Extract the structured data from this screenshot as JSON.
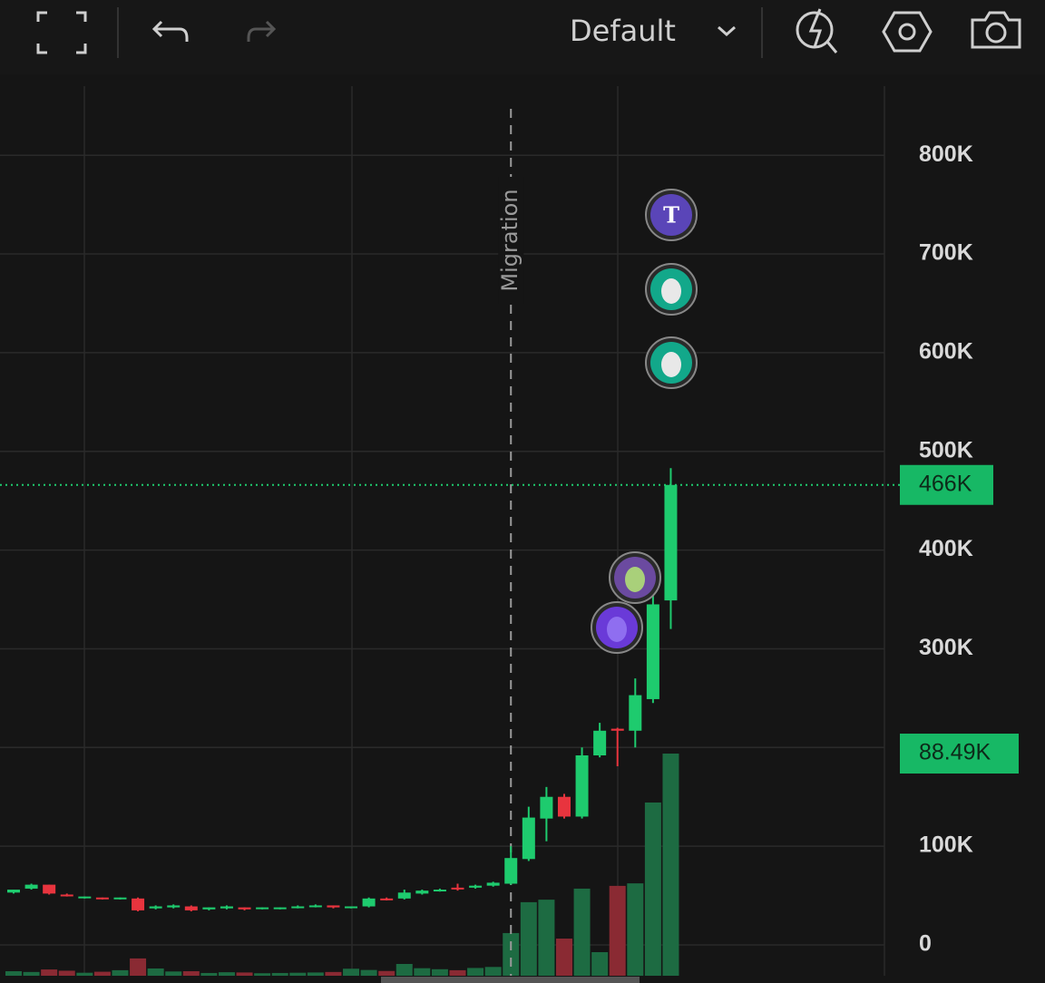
{
  "toolbar": {
    "layout": "Default"
  },
  "chart_data": {
    "type": "candlestick",
    "ylim": [
      -31250,
      870000
    ],
    "yticks": [
      0,
      {
        "value": 100000,
        "label": "100K"
      },
      {
        "value": 200000,
        "label": "200K"
      },
      {
        "value": 300000,
        "label": "300K"
      },
      {
        "value": 400000,
        "label": "400K"
      },
      {
        "value": 500000,
        "label": "500K"
      },
      {
        "value": 600000,
        "label": "600K"
      },
      {
        "value": 700000,
        "label": "700K"
      },
      {
        "value": 800000,
        "label": "800K"
      }
    ],
    "grid": true,
    "up_color": "#1ecb6e",
    "down_color": "#e8343e",
    "up_volume_color": "#1d6b42",
    "down_volume_color": "#8a2a33",
    "current_price": {
      "value": 466000,
      "label": "466K"
    },
    "current_volume": {
      "value": 88490,
      "label": "88.49K"
    },
    "annotation": {
      "text": "Migration",
      "candle": 28
    },
    "marker_text": "T",
    "candles": [
      {
        "open": 53000,
        "high": 56000,
        "low": 52000,
        "close": 56000,
        "volume": 1800
      },
      {
        "open": 57000,
        "high": 62000,
        "low": 56000,
        "close": 61000,
        "volume": 1500
      },
      {
        "open": 61000,
        "high": 61000,
        "low": 51000,
        "close": 52000,
        "volume": 2500
      },
      {
        "open": 51000,
        "high": 52000,
        "low": 49000,
        "close": 50000,
        "volume": 2000
      },
      {
        "open": 48000,
        "high": 49000,
        "low": 47000,
        "close": 49000,
        "volume": 1200
      },
      {
        "open": 48000,
        "high": 48000,
        "low": 46000,
        "close": 47000,
        "volume": 1600
      },
      {
        "open": 47000,
        "high": 48000,
        "low": 46000,
        "close": 48000,
        "volume": 2200
      },
      {
        "open": 47000,
        "high": 48000,
        "low": 34000,
        "close": 35000,
        "volume": 6900
      },
      {
        "open": 37000,
        "high": 40000,
        "low": 36000,
        "close": 39000,
        "volume": 2900
      },
      {
        "open": 38000,
        "high": 41000,
        "low": 37000,
        "close": 40000,
        "volume": 1700
      },
      {
        "open": 39000,
        "high": 40000,
        "low": 34000,
        "close": 35000,
        "volume": 1800
      },
      {
        "open": 36000,
        "high": 38000,
        "low": 35000,
        "close": 38000,
        "volume": 1100
      },
      {
        "open": 37000,
        "high": 40000,
        "low": 36000,
        "close": 39000,
        "volume": 1400
      },
      {
        "open": 38000,
        "high": 38000,
        "low": 35000,
        "close": 36000,
        "volume": 1300
      },
      {
        "open": 37000,
        "high": 38000,
        "low": 36000,
        "close": 38000,
        "volume": 1000
      },
      {
        "open": 37000,
        "high": 38000,
        "low": 36000,
        "close": 38000,
        "volume": 1100
      },
      {
        "open": 38000,
        "high": 40000,
        "low": 37000,
        "close": 39000,
        "volume": 1200
      },
      {
        "open": 39000,
        "high": 41000,
        "low": 38000,
        "close": 40000,
        "volume": 1300
      },
      {
        "open": 40000,
        "high": 40000,
        "low": 37000,
        "close": 38000,
        "volume": 1500
      },
      {
        "open": 38000,
        "high": 39000,
        "low": 37000,
        "close": 39000,
        "volume": 2800
      },
      {
        "open": 39000,
        "high": 48000,
        "low": 38000,
        "close": 47000,
        "volume": 2300
      },
      {
        "open": 47000,
        "high": 48000,
        "low": 45000,
        "close": 46000,
        "volume": 1900
      },
      {
        "open": 47000,
        "high": 56000,
        "low": 46000,
        "close": 53000,
        "volume": 4700
      },
      {
        "open": 52000,
        "high": 56000,
        "low": 51000,
        "close": 55000,
        "volume": 3000
      },
      {
        "open": 55000,
        "high": 57000,
        "low": 54000,
        "close": 56000,
        "volume": 2600
      },
      {
        "open": 58000,
        "high": 62000,
        "low": 55000,
        "close": 57000,
        "volume": 2200
      },
      {
        "open": 58000,
        "high": 61000,
        "low": 57000,
        "close": 60000,
        "volume": 3100
      },
      {
        "open": 60000,
        "high": 64000,
        "low": 59000,
        "close": 63000,
        "volume": 3500
      },
      {
        "open": 62000,
        "high": 100000,
        "low": 61000,
        "close": 88000,
        "volume": 17000
      },
      {
        "open": 87000,
        "high": 140000,
        "low": 85000,
        "close": 129000,
        "volume": 29300
      },
      {
        "open": 128000,
        "high": 160000,
        "low": 105000,
        "close": 150000,
        "volume": 30300
      },
      {
        "open": 150000,
        "high": 153000,
        "low": 128000,
        "close": 130000,
        "volume": 14800
      },
      {
        "open": 130000,
        "high": 200000,
        "low": 128000,
        "close": 192000,
        "volume": 34700
      },
      {
        "open": 192000,
        "high": 225000,
        "low": 190000,
        "close": 217000,
        "volume": 9400
      },
      {
        "open": 219000,
        "high": 220000,
        "low": 181000,
        "close": 217000,
        "volume": 35800
      },
      {
        "open": 217000,
        "high": 270000,
        "low": 200000,
        "close": 253000,
        "volume": 36800
      },
      {
        "open": 249000,
        "high": 355000,
        "low": 245000,
        "close": 345000,
        "volume": 69000
      },
      {
        "open": 349000,
        "high": 483000,
        "low": 320000,
        "close": 466000,
        "volume": 88490
      }
    ]
  }
}
